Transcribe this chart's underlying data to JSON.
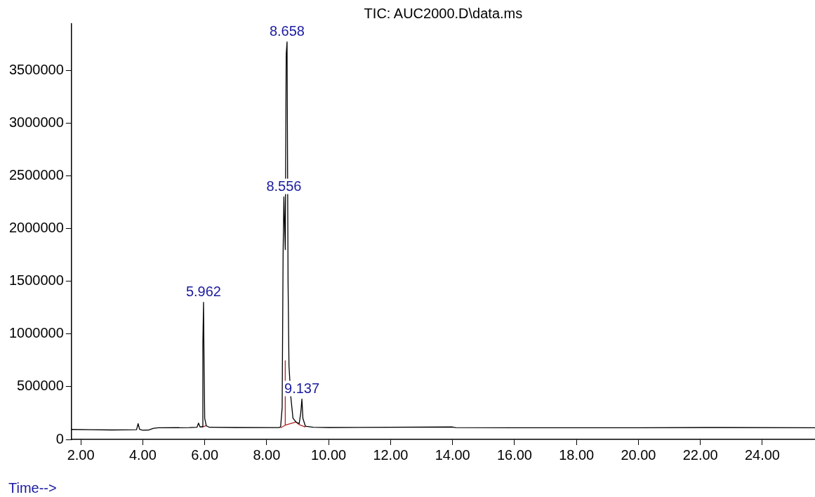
{
  "chart_data": {
    "type": "line",
    "title": "TIC: AUC2000.D\\data.ms",
    "xlabel": "Time-->",
    "xlim": [
      1.7,
      25.7
    ],
    "xticks": [
      {
        "value": 2,
        "label": "2.00"
      },
      {
        "value": 4,
        "label": "4.00"
      },
      {
        "value": 6,
        "label": "6.00"
      },
      {
        "value": 8,
        "label": "8.00"
      },
      {
        "value": 10,
        "label": "10.00"
      },
      {
        "value": 12,
        "label": "12.00"
      },
      {
        "value": 14,
        "label": "14.00"
      },
      {
        "value": 16,
        "label": "16.00"
      },
      {
        "value": 18,
        "label": "18.00"
      },
      {
        "value": 20,
        "label": "20.00"
      },
      {
        "value": 22,
        "label": "22.00"
      },
      {
        "value": 24,
        "label": "24.00"
      }
    ],
    "ylim": [
      0,
      3940000
    ],
    "yticks": [
      0,
      500000,
      1000000,
      1500000,
      2000000,
      2500000,
      3000000,
      3500000
    ],
    "grid": false,
    "legend": false,
    "marker": "none",
    "line_style": "solid",
    "series": [
      {
        "color": "#000000",
        "x": [
          1.7,
          2.3,
          3.0,
          3.8,
          3.85,
          3.9,
          4.0,
          4.2,
          4.35,
          4.5,
          5.5,
          5.75,
          5.8,
          5.85,
          5.92,
          5.94,
          5.962,
          5.98,
          6.0,
          6.05,
          6.15,
          7.0,
          8.4,
          8.45,
          8.5,
          8.53,
          8.556,
          8.6,
          8.63,
          8.658,
          8.69,
          8.72,
          8.78,
          8.85,
          8.95,
          9.05,
          9.1,
          9.137,
          9.17,
          9.25,
          9.5,
          10.0,
          14.0,
          14.1,
          16.0,
          20.0,
          22.2,
          22.6,
          25.7
        ],
        "values": [
          95000,
          92000,
          90000,
          92000,
          150000,
          95000,
          88000,
          90000,
          105000,
          110000,
          112000,
          115000,
          155000,
          118000,
          120000,
          900000,
          1300000,
          700000,
          200000,
          130000,
          115000,
          113000,
          112000,
          120000,
          300000,
          1750000,
          2300000,
          1800000,
          3650000,
          3770000,
          1500000,
          700000,
          400000,
          200000,
          165000,
          150000,
          250000,
          383000,
          200000,
          125000,
          115000,
          113000,
          118000,
          112000,
          111000,
          110000,
          113000,
          113000,
          110000
        ]
      },
      {
        "color": "#b22222",
        "x": [
          5.9,
          6.05,
          6.06,
          8.45,
          8.6,
          8.6,
          8.6,
          8.95,
          9.05,
          9.25
        ],
        "values": [
          115000,
          130000,
          null,
          110000,
          135000,
          746000,
          135000,
          165000,
          140000,
          118000
        ]
      }
    ],
    "annotations": [
      {
        "text": "5.962",
        "x": 5.962,
        "y": 1300000
      },
      {
        "text": "8.556",
        "x": 8.556,
        "y": 2300000
      },
      {
        "text": "8.658",
        "x": 8.658,
        "y": 3770000
      },
      {
        "text": "9.137",
        "x": 9.137,
        "y": 383000
      }
    ]
  }
}
